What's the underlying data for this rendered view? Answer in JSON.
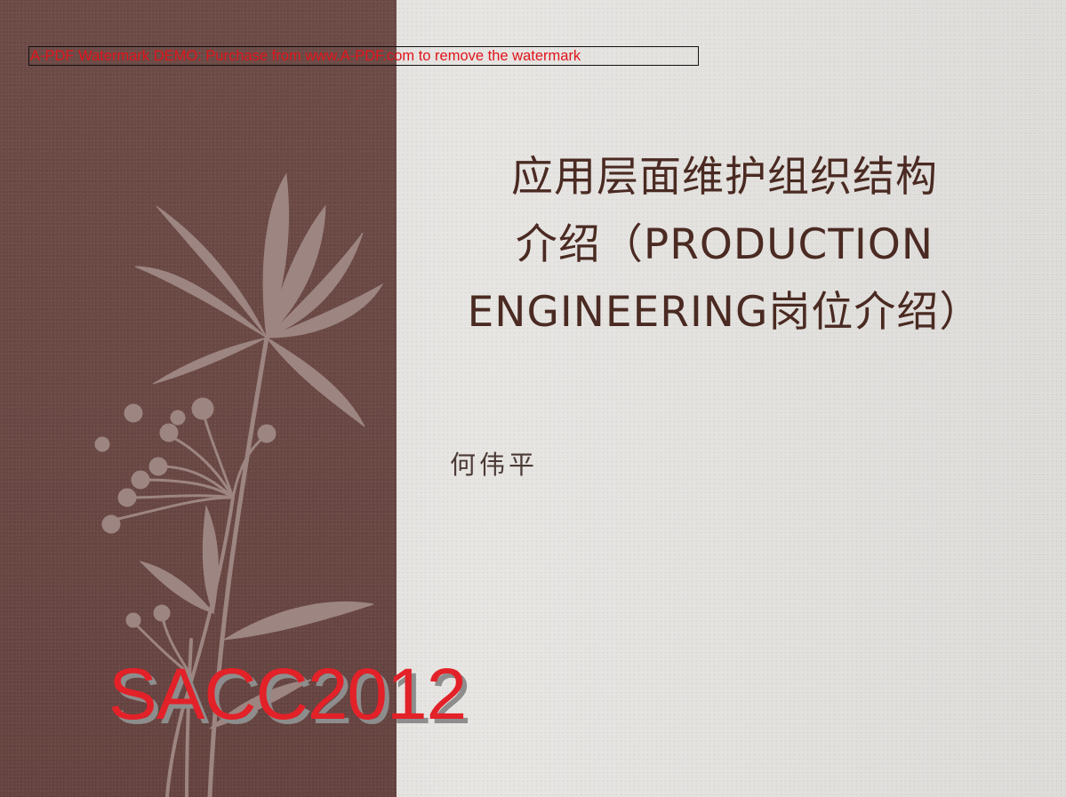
{
  "watermark": {
    "text": "A-PDF Watermark DEMO: Purchase from www.A-PDF.com to remove the watermark"
  },
  "slide": {
    "title_lines": [
      "应用层面维护组织结构",
      "介绍（PRODUCTION",
      "ENGINEERING岗位介绍）"
    ],
    "author": "何伟平",
    "conference_stamp": "SACC2012"
  },
  "colors": {
    "left_panel": "#6a4844",
    "right_background": "#e0dedb",
    "title_text": "#4a2a22",
    "watermark_text": "#e0141b",
    "stamp_text": "#e32128",
    "stamp_shadow": "#8d8d8d",
    "flower_silhouette": "#9d8581"
  },
  "icons": {
    "decoration": "flower-branch-icon"
  }
}
